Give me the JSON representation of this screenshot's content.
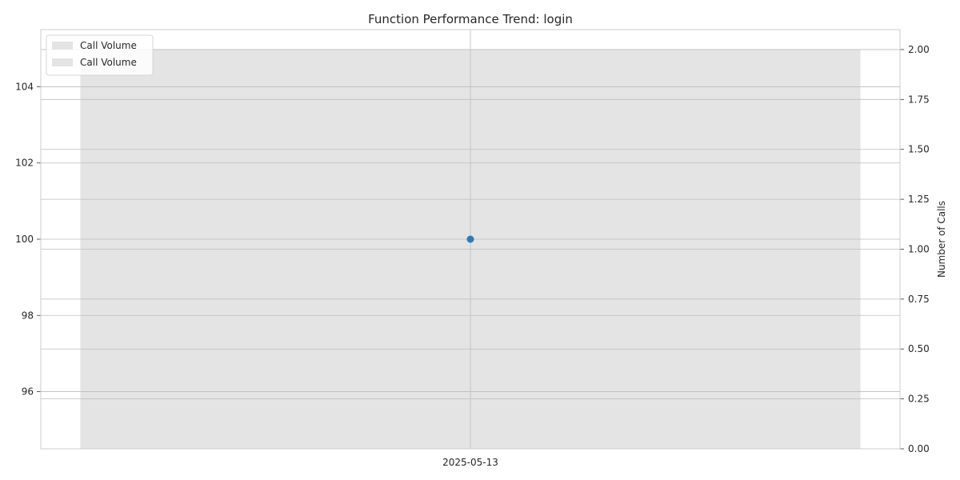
{
  "chart_data": {
    "type": "line",
    "title": "Function Performance Trend: login",
    "x": [
      "2025-05-13"
    ],
    "series": [
      {
        "name": "Call Volume",
        "kind": "bar",
        "axis": "right",
        "values": [
          2
        ],
        "color": "#e4e4e4"
      },
      {
        "kind": "line",
        "axis": "left",
        "values": [
          100
        ],
        "color": "#2f7ab5"
      }
    ],
    "y_left": {
      "label": "",
      "ticks": [
        96,
        98,
        100,
        102,
        104
      ],
      "ylim": [
        94.5,
        105.5
      ]
    },
    "y_right": {
      "label": "Number of Calls",
      "ticks": [
        "0.00",
        "0.25",
        "0.50",
        "0.75",
        "1.00",
        "1.25",
        "1.50",
        "1.75",
        "2.00"
      ],
      "ylim": [
        0,
        2.1
      ]
    },
    "legend": {
      "position": "upper-left",
      "entries": [
        "Call Volume",
        "Call Volume"
      ]
    },
    "grid": true
  }
}
